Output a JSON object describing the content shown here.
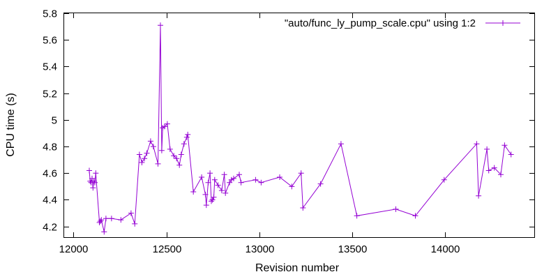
{
  "chart_data": {
    "type": "line",
    "title": "",
    "xlabel": "Revision number",
    "ylabel": "CPU time (s)",
    "xlim": [
      11950,
      14480
    ],
    "ylim": [
      4.12,
      5.8
    ],
    "x_ticks": [
      12000,
      12500,
      13000,
      13500,
      14000
    ],
    "y_ticks": [
      4.2,
      4.4,
      4.6,
      4.8,
      5.0,
      5.2,
      5.4,
      5.6,
      5.8
    ],
    "x_tick_labels": [
      "12000",
      "12500",
      "13000",
      "13500",
      "14000"
    ],
    "y_tick_labels": [
      "4.2",
      "4.4",
      "4.6",
      "4.8",
      "5",
      "5.2",
      "5.4",
      "5.6",
      "5.8"
    ],
    "grid": false,
    "legend_position": "top-right",
    "marker": "plus",
    "colors": {
      "series": "#9400d3",
      "axis": "#000000",
      "background": "#ffffff"
    },
    "series": [
      {
        "name": "\"auto/func_ly_pump_scale.cpu\" using 1:2",
        "x": [
          12085,
          12090,
          12095,
          12100,
          12105,
          12110,
          12115,
          12120,
          12140,
          12145,
          12150,
          12165,
          12175,
          12205,
          12255,
          12310,
          12330,
          12355,
          12368,
          12382,
          12395,
          12415,
          12430,
          12455,
          12468,
          12475,
          12480,
          12490,
          12505,
          12520,
          12540,
          12555,
          12570,
          12580,
          12595,
          12610,
          12615,
          12645,
          12690,
          12710,
          12715,
          12725,
          12735,
          12742,
          12748,
          12755,
          12760,
          12778,
          12798,
          12812,
          12818,
          12840,
          12850,
          12862,
          12892,
          12902,
          12980,
          13010,
          13110,
          13175,
          13225,
          13235,
          13330,
          13440,
          13525,
          13735,
          13840,
          13995,
          14170,
          14180,
          14225,
          14235,
          14265,
          14300,
          14320,
          14355
        ],
        "y": [
          4.62,
          4.54,
          4.53,
          4.56,
          4.49,
          4.54,
          4.53,
          4.6,
          4.23,
          4.24,
          4.25,
          4.16,
          4.26,
          4.26,
          4.25,
          4.3,
          4.22,
          4.74,
          4.68,
          4.71,
          4.75,
          4.84,
          4.8,
          4.67,
          5.71,
          4.77,
          4.94,
          4.95,
          4.97,
          4.78,
          4.73,
          4.71,
          4.66,
          4.74,
          4.82,
          4.87,
          4.89,
          4.46,
          4.57,
          4.44,
          4.36,
          4.53,
          4.6,
          4.39,
          4.4,
          4.42,
          4.55,
          4.51,
          4.47,
          4.59,
          4.45,
          4.53,
          4.55,
          4.56,
          4.59,
          4.53,
          4.55,
          4.53,
          4.57,
          4.5,
          4.6,
          4.34,
          4.52,
          4.82,
          4.28,
          4.33,
          4.28,
          4.55,
          4.82,
          4.43,
          4.78,
          4.62,
          4.64,
          4.59,
          4.81,
          4.74
        ]
      }
    ]
  }
}
